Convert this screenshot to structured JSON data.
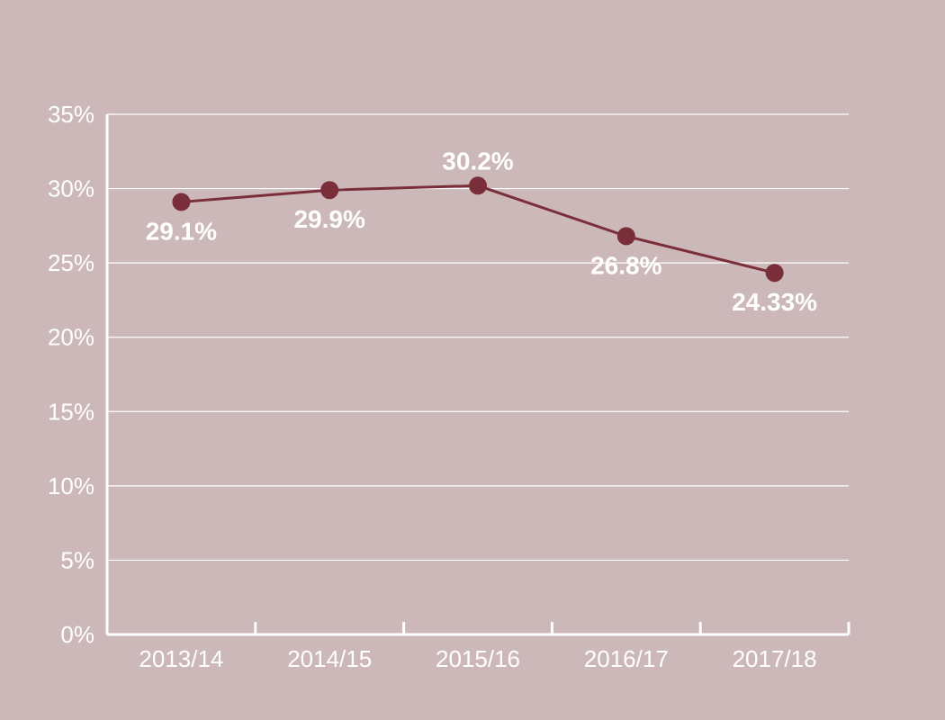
{
  "colors": {
    "background": "#cdb8b9",
    "series": "#7a2e3a",
    "axis": "#ffffff",
    "grid": "#ffffff",
    "text": "#ffffff"
  },
  "chart_data": {
    "type": "line",
    "title": "",
    "xlabel": "",
    "ylabel": "",
    "categories": [
      "2013/14",
      "2014/15",
      "2015/16",
      "2016/17",
      "2017/18"
    ],
    "series": [
      {
        "values": [
          29.1,
          29.9,
          30.2,
          26.8,
          24.33
        ],
        "data_labels": [
          "29.1%",
          "29.9%",
          "30.2%",
          "26.8%",
          "24.33%"
        ]
      }
    ],
    "ylim": [
      0,
      35
    ],
    "yticks": [
      0,
      5,
      10,
      15,
      20,
      25,
      30,
      35
    ],
    "ytick_labels": [
      "0%",
      "5%",
      "10%",
      "15%",
      "20%",
      "25%",
      "30%",
      "35%"
    ],
    "grid": true,
    "legend": "none"
  }
}
